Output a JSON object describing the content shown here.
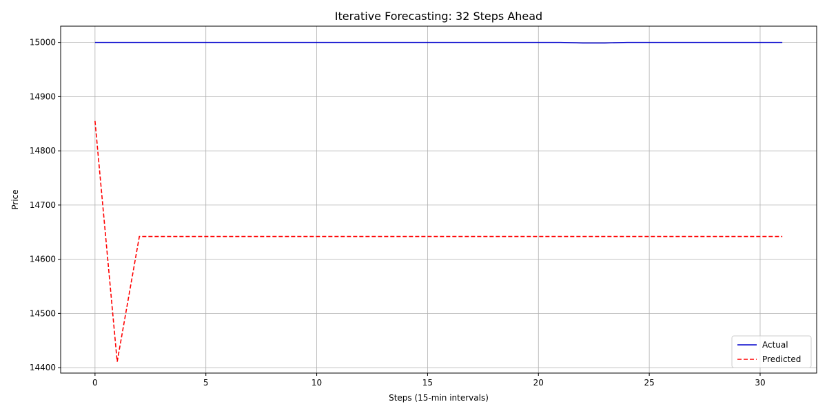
{
  "chart_data": {
    "type": "line",
    "title": "Iterative Forecasting: 32 Steps Ahead",
    "xlabel": "Steps (15-min intervals)",
    "ylabel": "Price",
    "xlim": [
      -1.55,
      32.55
    ],
    "ylim": [
      14390,
      15030
    ],
    "xticks": [
      0,
      5,
      10,
      15,
      20,
      25,
      30
    ],
    "yticks": [
      14400,
      14500,
      14600,
      14700,
      14800,
      14900,
      15000
    ],
    "grid": true,
    "legend_position": "lower-right",
    "x": [
      0,
      1,
      2,
      3,
      4,
      5,
      6,
      7,
      8,
      9,
      10,
      11,
      12,
      13,
      14,
      15,
      16,
      17,
      18,
      19,
      20,
      21,
      22,
      23,
      24,
      25,
      26,
      27,
      28,
      29,
      30,
      31
    ],
    "series": [
      {
        "name": "Actual",
        "color": "#0000cc",
        "style": "solid",
        "values": [
          15000,
          15000,
          15000,
          15000,
          15000,
          15000,
          15000,
          15000,
          15000,
          15000,
          15000,
          15000,
          15000,
          15000,
          15000,
          15000,
          15000,
          15000,
          15000,
          15000,
          15000,
          15000,
          14999,
          14999,
          15000,
          15000,
          15000,
          15000,
          15000,
          15000,
          15000,
          15000
        ]
      },
      {
        "name": "Predicted",
        "color": "#ff0000",
        "style": "dashed",
        "values": [
          14855,
          14411,
          14642,
          14642,
          14642,
          14642,
          14642,
          14642,
          14642,
          14642,
          14642,
          14642,
          14642,
          14642,
          14642,
          14642,
          14642,
          14642,
          14642,
          14642,
          14642,
          14642,
          14642,
          14642,
          14642,
          14642,
          14642,
          14642,
          14642,
          14642,
          14642,
          14642
        ]
      }
    ]
  }
}
